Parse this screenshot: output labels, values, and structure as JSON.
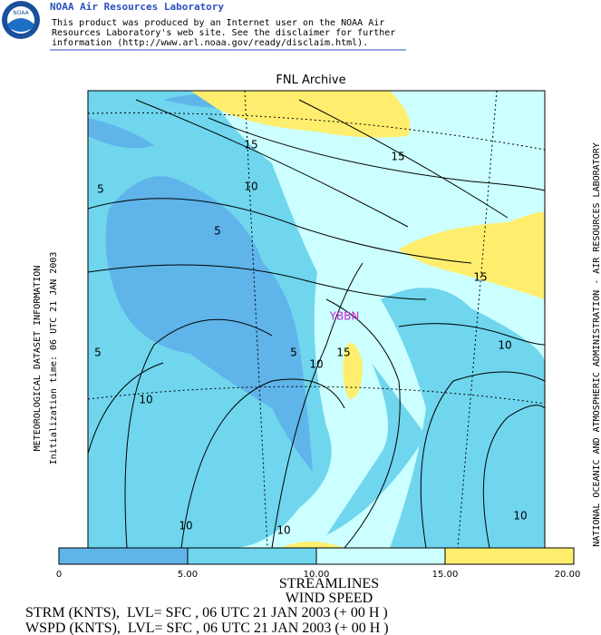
{
  "header": {
    "title": "NOAA Air Resources Laboratory",
    "logo": "NOAA",
    "disclaimer": [
      "This product was produced by an Internet user on the NOAA Air",
      "Resources Laboratory's web site.  See the disclaimer for further",
      "information (http://www.arl.noaa.gov/ready/disclaim.html)."
    ]
  },
  "map": {
    "title": "FNL Archive",
    "station": "YBBN",
    "contour_labels": [
      "15",
      "15",
      "5",
      "10",
      "5",
      "15",
      "10",
      "5",
      "5",
      "10",
      "15",
      "10",
      "10",
      "10",
      "10"
    ]
  },
  "colorbar": {
    "labels": [
      "0",
      "5.00",
      "10.00",
      "15.00",
      "20.00"
    ]
  },
  "footer": {
    "lines": [
      "STREAMLINES",
      "WIND SPEED",
      "STRM (KNTS),  LVL= SFC , 06 UTC 21 JAN 2003 (+ 00 H )",
      "WSPD (KNTS),  LVL= SFC , 06 UTC 21 JAN 2003 (+ 00 H )"
    ]
  },
  "side": {
    "left": [
      "METEOROLOGICAL DATASET INFORMATION",
      "Initialization time: 06 UTC 21 JAN 2003"
    ],
    "right": "NATIONAL OCEANIC AND ATMOSPHERIC ADMINISTRATION - AIR RESOURCES LABORATORY"
  }
}
